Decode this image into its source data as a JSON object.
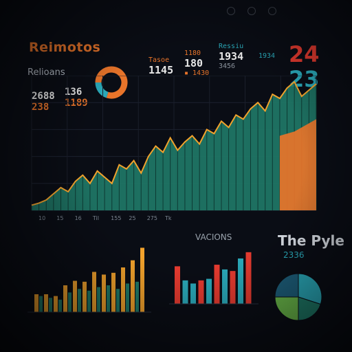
{
  "header": {
    "title": "Reimotos",
    "subtitle": "Relioans"
  },
  "stats_left": {
    "a_value": "2688",
    "a_sub": "238",
    "b_value": "136",
    "b_sub": "1189"
  },
  "stats_mid": {
    "s1_label": "Tasoe",
    "s1_value": "1145",
    "s2_label": "1180",
    "s2_value": "180",
    "s2_sub": "▪ 1430",
    "s3_label": "Ressiu",
    "s3_value": "1934",
    "s3_sub": "3456"
  },
  "stats_right": {
    "label_top": "1934",
    "num_red": "24",
    "num_teal": "23"
  },
  "tiles": {
    "center_label": "VACIONS",
    "right_label": "The Pyle",
    "right_sub": "2336"
  },
  "colors": {
    "bg": "#0a0d15",
    "orange": "#e8742a",
    "teal": "#2aa8b8",
    "green": "#1f7a68",
    "red": "#e33a2f",
    "yellow": "#f2a22c"
  },
  "chart_data": [
    {
      "type": "area",
      "x": [
        1,
        2,
        3,
        4,
        5,
        6,
        7,
        8,
        9,
        10,
        11,
        12,
        13,
        14,
        15,
        16,
        17,
        18,
        19,
        20,
        21,
        22,
        23,
        24,
        25,
        26,
        27,
        28,
        29,
        30,
        31,
        32,
        33,
        34,
        35,
        36,
        37,
        38,
        39,
        40
      ],
      "series": [
        {
          "values": [
            5,
            7,
            10,
            16,
            22,
            18,
            28,
            34,
            26,
            38,
            32,
            26,
            44,
            40,
            48,
            36,
            52,
            62,
            56,
            70,
            58,
            66,
            72,
            64,
            78,
            74,
            86,
            80,
            92,
            88,
            98,
            104,
            96,
            112,
            108,
            118,
            124,
            110,
            116,
            122
          ]
        },
        {
          "values": [
            0,
            0,
            0,
            0,
            0,
            0,
            0,
            0,
            0,
            0,
            0,
            0,
            0,
            0,
            0,
            0,
            0,
            0,
            0,
            0,
            0,
            0,
            0,
            0,
            0,
            0,
            0,
            0,
            0,
            0,
            0,
            0,
            0,
            0,
            72,
            74,
            76,
            80,
            84,
            88
          ]
        }
      ],
      "tick_labels_x": [
        "10",
        "15",
        "16",
        "Til",
        "155",
        "25",
        "275",
        "Tk"
      ]
    },
    {
      "type": "bar",
      "categories": [
        "1",
        "2",
        "3",
        "4",
        "5",
        "6",
        "7",
        "8",
        "9",
        "10",
        "11",
        "12"
      ],
      "series": [
        {
          "values": [
            20,
            20,
            18,
            30,
            35,
            34,
            45,
            42,
            44,
            50,
            58,
            72
          ]
        },
        {
          "values": [
            18,
            16,
            14,
            22,
            26,
            24,
            28,
            30,
            26,
            32,
            34,
            0
          ]
        }
      ]
    },
    {
      "type": "bar",
      "categories": [
        "1",
        "2",
        "3",
        "4",
        "5",
        "6",
        "7",
        "8",
        "9",
        "10"
      ],
      "values": [
        48,
        30,
        26,
        30,
        32,
        50,
        44,
        42,
        58,
        66
      ]
    },
    {
      "type": "pie",
      "slices": [
        {
          "value": 30
        },
        {
          "value": 20
        },
        {
          "value": 25
        },
        {
          "value": 25
        }
      ]
    },
    {
      "type": "pie",
      "slices": [
        {
          "value": 80
        },
        {
          "value": 20
        }
      ]
    }
  ]
}
